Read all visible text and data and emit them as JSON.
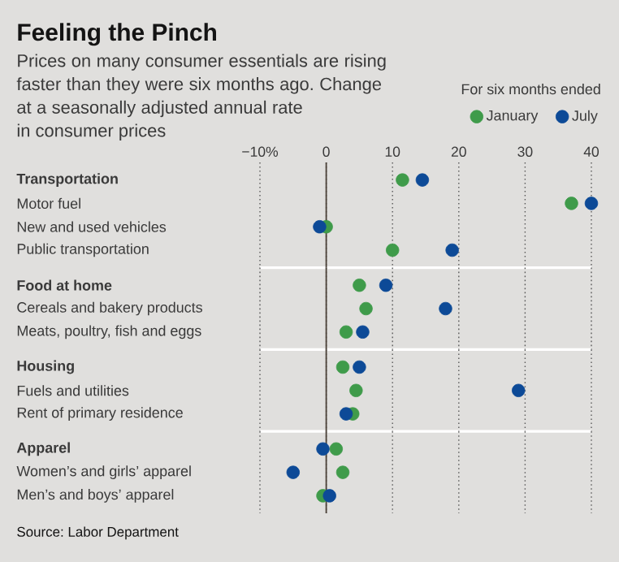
{
  "chart_data": [
    {
      "type": "scatter",
      "orientation": "horizontal",
      "title": "Feeling the Pinch",
      "subtitle": "Prices on many consumer essentials are rising faster than they were six months ago. Change at a seasonally adjusted annual rate in consumer prices",
      "legend_title": "For six months ended",
      "legend": "top right",
      "marker": "circle",
      "grid": "x",
      "xlim": [
        -10,
        40
      ],
      "xticks": [
        {
          "value": -10,
          "label": "−10%"
        },
        0,
        10,
        20,
        30,
        40
      ],
      "ref_lines": [
        {
          "axis": "x",
          "value": 0,
          "color": "#4a4037"
        }
      ],
      "categories": [
        "Transportation",
        "Motor fuel",
        "New and used vehicles",
        "Public transportation"
      ],
      "series": [
        {
          "name": "January",
          "color": "#3f9b4a",
          "values": [
            11.5,
            37,
            0,
            10
          ]
        },
        {
          "name": "July",
          "color": "#0d4a97",
          "values": [
            14.5,
            40,
            -1,
            19
          ]
        }
      ]
    },
    {
      "type": "scatter",
      "orientation": "horizontal",
      "marker": "circle",
      "grid": "x",
      "tick_labels": "y",
      "xlim": [
        -10,
        40
      ],
      "xticks": [
        -10,
        0,
        10,
        20,
        30,
        40
      ],
      "ref_lines": [
        {
          "axis": "x",
          "value": 0,
          "color": "#4a4037"
        }
      ],
      "categories": [
        "Food at home",
        "Cereals and bakery products",
        "Meats, poultry, fish and eggs"
      ],
      "series": [
        {
          "color": "#3f9b4a",
          "values": [
            5,
            6,
            3
          ]
        },
        {
          "color": "#0d4a97",
          "values": [
            9,
            18,
            5.5
          ]
        }
      ]
    },
    {
      "type": "scatter",
      "orientation": "horizontal",
      "marker": "circle",
      "grid": "x",
      "tick_labels": "y",
      "xlim": [
        -10,
        40
      ],
      "xticks": [
        -10,
        0,
        10,
        20,
        30,
        40
      ],
      "ref_lines": [
        {
          "axis": "x",
          "value": 0,
          "color": "#4a4037"
        }
      ],
      "categories": [
        "Housing",
        "Fuels and utilities",
        "Rent of primary residence"
      ],
      "series": [
        {
          "color": "#3f9b4a",
          "values": [
            2.5,
            4.5,
            4
          ]
        },
        {
          "color": "#0d4a97",
          "values": [
            5,
            29,
            3
          ]
        }
      ]
    },
    {
      "type": "scatter",
      "orientation": "horizontal",
      "marker": "circle",
      "grid": "x",
      "tick_labels": "y",
      "xlim": [
        -10,
        40
      ],
      "xticks": [
        -10,
        0,
        10,
        20,
        30,
        40
      ],
      "ref_lines": [
        {
          "axis": "x",
          "value": 0,
          "color": "#4a4037"
        }
      ],
      "categories": [
        "Apparel",
        "Women’s and girls’ apparel",
        "Men’s and boys’ apparel"
      ],
      "series": [
        {
          "color": "#3f9b4a",
          "values": [
            1.5,
            2.5,
            -0.5
          ]
        },
        {
          "color": "#0d4a97",
          "values": [
            -0.5,
            -5,
            0.5
          ]
        }
      ],
      "annotations": [
        "Source: Labor Department"
      ]
    }
  ]
}
